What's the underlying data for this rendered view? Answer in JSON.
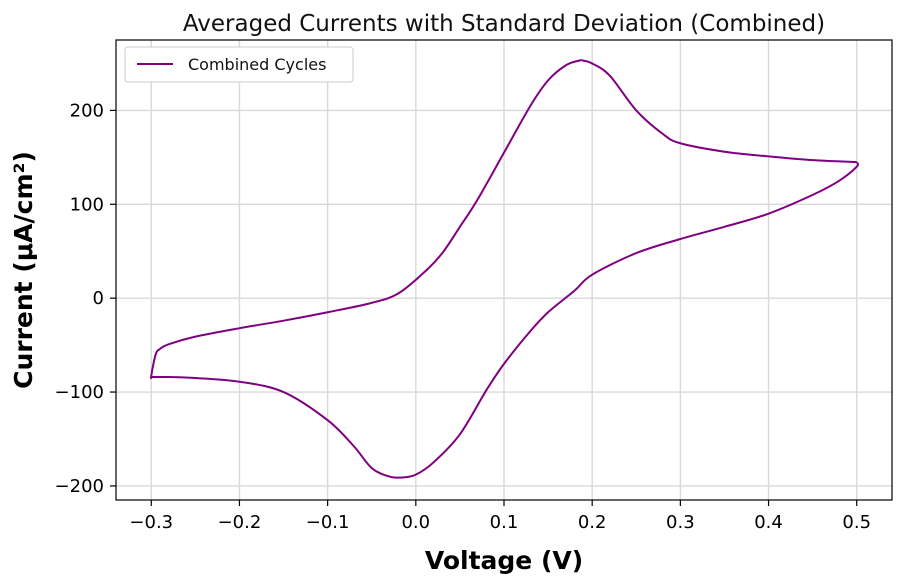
{
  "chart_data": {
    "type": "line",
    "title": "Averaged Currents with Standard Deviation (Combined)",
    "xlabel": "Voltage (V)",
    "ylabel": "Current (μA/cm²)",
    "xlim": [
      -0.34,
      0.54
    ],
    "ylim": [
      -215,
      275
    ],
    "xticks": [
      -0.3,
      -0.2,
      -0.1,
      0.0,
      0.1,
      0.2,
      0.3,
      0.4,
      0.5
    ],
    "xtick_labels": [
      "−0.3",
      "−0.2",
      "−0.1",
      "0.0",
      "0.1",
      "0.2",
      "0.3",
      "0.4",
      "0.5"
    ],
    "yticks": [
      -200,
      -100,
      0,
      100,
      200
    ],
    "ytick_labels": [
      "−200",
      "−100",
      "0",
      "100",
      "200"
    ],
    "grid": true,
    "legend_position": "top-left",
    "series": [
      {
        "name": "Combined Cycles",
        "color": "#800080",
        "x": [
          0.5,
          0.45,
          0.4,
          0.35,
          0.3,
          0.28,
          0.25,
          0.22,
          0.2,
          0.19,
          0.185,
          0.17,
          0.15,
          0.13,
          0.1,
          0.07,
          0.05,
          0.03,
          0.01,
          -0.02,
          -0.05,
          -0.1,
          -0.15,
          -0.2,
          -0.25,
          -0.28,
          -0.29,
          -0.295,
          -0.3,
          -0.298,
          -0.28,
          -0.25,
          -0.2,
          -0.15,
          -0.1,
          -0.07,
          -0.05,
          -0.03,
          -0.015,
          0.0,
          0.02,
          0.05,
          0.08,
          0.1,
          0.13,
          0.15,
          0.18,
          0.2,
          0.25,
          0.3,
          0.35,
          0.4,
          0.45,
          0.48,
          0.5,
          0.5
        ],
        "y": [
          145,
          147,
          151,
          156,
          165,
          175,
          200,
          237,
          250,
          253,
          253,
          248,
          232,
          205,
          155,
          105,
          76,
          48,
          28,
          5,
          -5,
          -15,
          -24,
          -32,
          -41,
          -49,
          -54,
          -60,
          -83,
          -84,
          -84,
          -85,
          -89,
          -100,
          -130,
          -158,
          -181,
          -190,
          -191,
          -188,
          -175,
          -145,
          -98,
          -70,
          -35,
          -15,
          8,
          25,
          48,
          63,
          76,
          90,
          110,
          125,
          140,
          145
        ]
      }
    ]
  }
}
